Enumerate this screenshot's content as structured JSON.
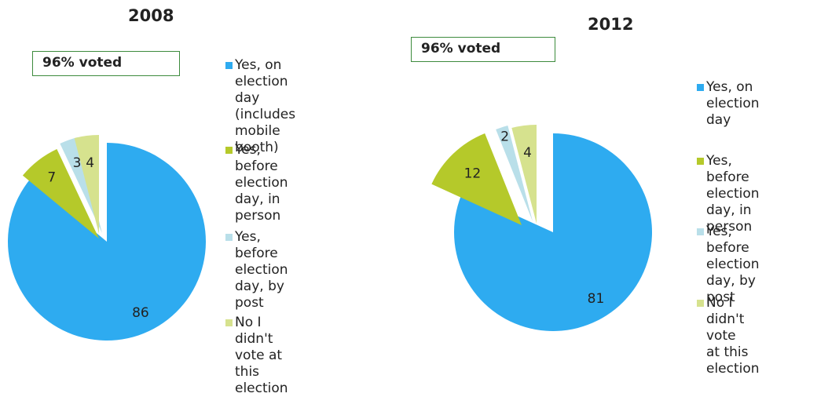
{
  "chart_data": [
    {
      "type": "pie",
      "title": "2008",
      "badge": "96% voted",
      "categories": [
        "Yes, on election day (includes mobile booth)",
        "Yes, before election day, in person",
        "Yes, before election day, by post",
        "No I didn't vote at this election"
      ],
      "values": [
        86,
        7,
        3,
        4
      ],
      "data_labels": [
        "86",
        "7",
        "3",
        "4"
      ],
      "exploded": true,
      "legend_position": "right"
    },
    {
      "type": "pie",
      "title": "2012",
      "badge": "96% voted",
      "categories": [
        "Yes, on election day",
        "Yes, before election day, in person",
        "Yes, before election day, by post",
        "No I didn't vote at this election"
      ],
      "values": [
        81,
        12,
        2,
        4
      ],
      "data_labels": [
        "81",
        "12",
        "2",
        "4"
      ],
      "exploded": true,
      "legend_position": "right"
    }
  ],
  "colors": [
    "#2eabf0",
    "#b5c92a",
    "#b9dfe9",
    "#d6e28e"
  ],
  "legends": [
    {
      "items": [
        {
          "text": "Yes, on election\nday (includes\nmobile booth)"
        },
        {
          "text": "Yes, before election\nday, in person"
        },
        {
          "text": "Yes, before election\nday, by post"
        },
        {
          "text": "No I didn't vote at\nthis election"
        }
      ]
    },
    {
      "items": [
        {
          "text": "Yes, on election\nday"
        },
        {
          "text": "Yes, before\nelection day, in\nperson"
        },
        {
          "text": "Yes, before\nelection day, by\npost"
        },
        {
          "text": "No I didn't vote\nat this election"
        }
      ]
    }
  ]
}
